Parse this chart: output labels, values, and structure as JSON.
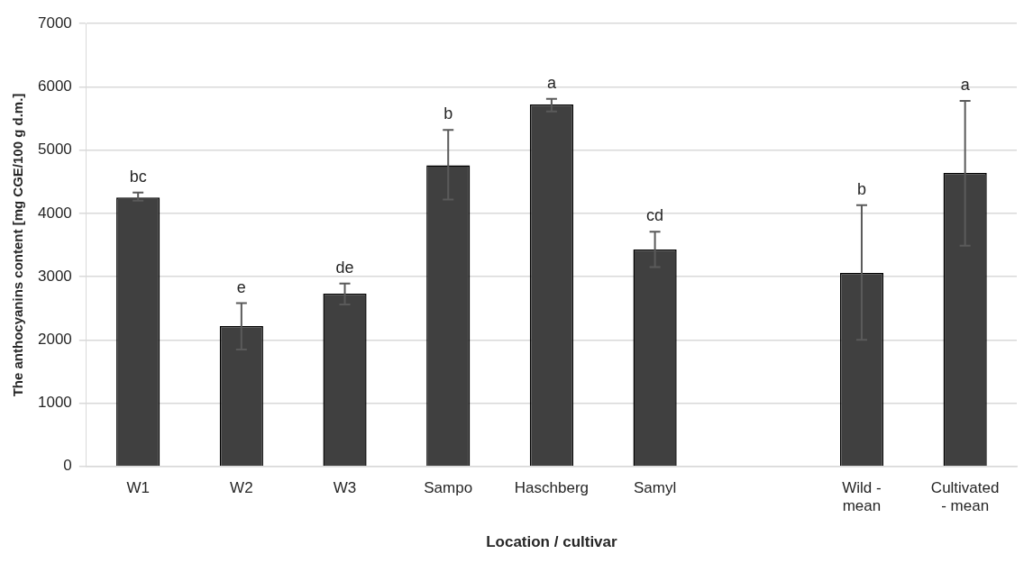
{
  "chart_data": {
    "type": "bar",
    "xlabel": "Location / cultivar",
    "ylabel": "The anthocyanins content [mg CGE/100 g d.m.]",
    "categories": [
      "W1",
      "W2",
      "W3",
      "Sampo",
      "Haschberg",
      "Samyl",
      null,
      "Wild - mean",
      "Cultivated - mean"
    ],
    "values": [
      4250,
      2220,
      2730,
      4760,
      5720,
      3430,
      null,
      3060,
      4640
    ],
    "errors": [
      [
        4200,
        4330
      ],
      [
        1850,
        2580
      ],
      [
        2560,
        2890
      ],
      [
        4220,
        5320
      ],
      [
        5610,
        5810
      ],
      [
        3150,
        3710
      ],
      null,
      [
        2000,
        4130
      ],
      [
        3490,
        5780
      ]
    ],
    "color": "#404040",
    "ylim": [
      0,
      7000
    ],
    "yticks": [
      0,
      1000,
      2000,
      3000,
      4000,
      5000,
      6000,
      7000
    ],
    "grid": "y",
    "legend": false,
    "annotations": [
      {
        "text": "bc",
        "x": "W1",
        "y": 4330
      },
      {
        "text": "e",
        "x": "W2",
        "y": 2580
      },
      {
        "text": "de",
        "x": "W3",
        "y": 2890
      },
      {
        "text": "b",
        "x": "Sampo",
        "y": 5320
      },
      {
        "text": "a",
        "x": "Haschberg",
        "y": 5810
      },
      {
        "text": "cd",
        "x": "Samyl",
        "y": 3710
      },
      {
        "text": "b",
        "x": "Wild - mean",
        "y": 4130
      },
      {
        "text": "a",
        "x": "Cultivated - mean",
        "y": 5780
      }
    ]
  }
}
